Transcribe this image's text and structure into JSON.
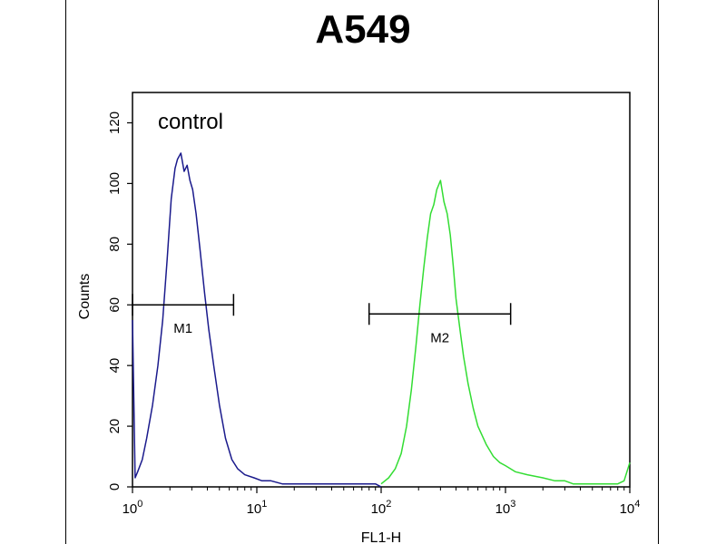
{
  "chart_data": {
    "type": "line",
    "title": "A549",
    "xlabel": "FL1-H",
    "ylabel": "Counts",
    "x_scale": "log",
    "xlim": [
      1,
      10000
    ],
    "ylim": [
      0,
      130
    ],
    "x_ticks": [
      1,
      10,
      100,
      1000,
      10000
    ],
    "x_tick_labels": [
      {
        "base": "10",
        "exp": "0"
      },
      {
        "base": "10",
        "exp": "1"
      },
      {
        "base": "10",
        "exp": "2"
      },
      {
        "base": "10",
        "exp": "3"
      },
      {
        "base": "10",
        "exp": "4"
      }
    ],
    "y_ticks": [
      0,
      20,
      40,
      60,
      80,
      100,
      120
    ],
    "y_tick_labels": [
      "0",
      "20",
      "40",
      "60",
      "80",
      "100",
      "120"
    ],
    "annotations": [
      {
        "text": "control",
        "x": 1.6,
        "y": 118
      }
    ],
    "markers": [
      {
        "name": "M1",
        "x_start": 1.0,
        "x_end": 6.5,
        "y": 60
      },
      {
        "name": "M2",
        "x_start": 80,
        "x_end": 1100,
        "y": 57
      }
    ],
    "series": [
      {
        "color": "#1a1a8c",
        "x": [
          1.0,
          1.05,
          1.1,
          1.2,
          1.3,
          1.45,
          1.6,
          1.75,
          1.9,
          2.05,
          2.2,
          2.3,
          2.45,
          2.6,
          2.75,
          2.9,
          3.05,
          3.25,
          3.5,
          3.8,
          4.1,
          4.5,
          5.0,
          5.6,
          6.3,
          7.0,
          8.0,
          9.5,
          11,
          13,
          16,
          20,
          25,
          32,
          40,
          50,
          60,
          70,
          80,
          90,
          100
        ],
        "y": [
          55,
          3,
          5,
          9,
          16,
          27,
          40,
          55,
          75,
          95,
          105,
          108,
          110,
          104,
          106,
          101,
          98,
          90,
          78,
          64,
          52,
          40,
          27,
          16,
          9,
          6,
          4,
          3,
          2,
          2,
          1,
          1,
          1,
          1,
          1,
          1,
          1,
          1,
          1,
          1,
          0
        ]
      },
      {
        "color": "#33dd33",
        "x": [
          100,
          115,
          130,
          145,
          160,
          175,
          190,
          205,
          220,
          235,
          250,
          265,
          280,
          300,
          320,
          340,
          360,
          380,
          400,
          430,
          460,
          500,
          550,
          600,
          700,
          800,
          900,
          1000,
          1200,
          1500,
          2000,
          2500,
          3000,
          3500,
          4000,
          4500,
          5000,
          6000,
          7000,
          8000,
          9000,
          10000
        ],
        "y": [
          1,
          3,
          6,
          11,
          20,
          32,
          46,
          60,
          72,
          82,
          90,
          93,
          98,
          101,
          94,
          90,
          83,
          73,
          62,
          52,
          43,
          34,
          26,
          20,
          14,
          10,
          8,
          7,
          5,
          4,
          3,
          2,
          2,
          1,
          1,
          1,
          1,
          1,
          1,
          1,
          2,
          8
        ]
      }
    ]
  }
}
